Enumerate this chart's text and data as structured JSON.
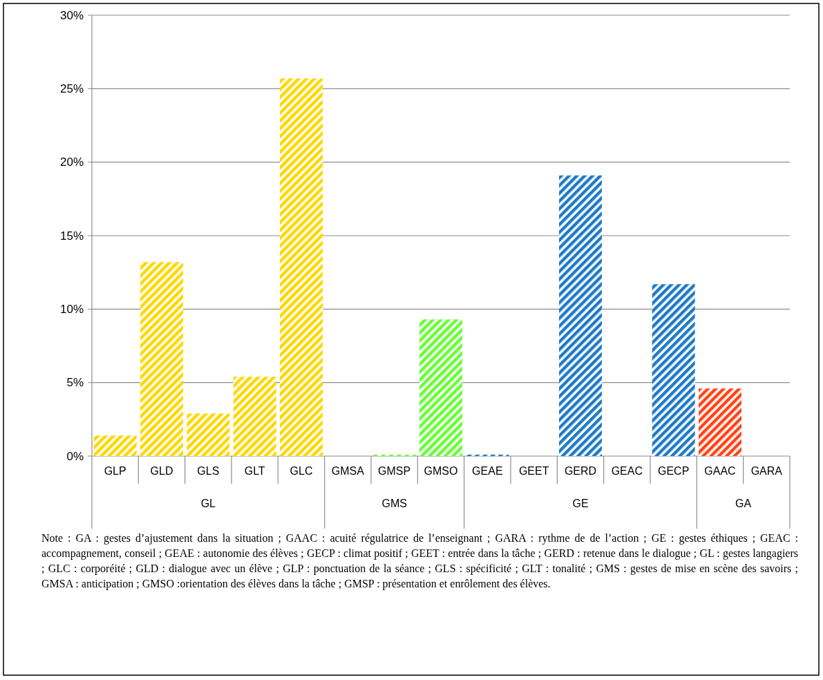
{
  "chart_data": {
    "type": "bar",
    "categories": [
      "GLP",
      "GLD",
      "GLS",
      "GLT",
      "GLC",
      "GMSA",
      "GMSP",
      "GMSO",
      "GEAE",
      "GEET",
      "GERD",
      "GEAC",
      "GECP",
      "GAAC",
      "GARA"
    ],
    "values": [
      1.4,
      13.2,
      2.9,
      5.4,
      25.7,
      0,
      0.1,
      9.3,
      0.1,
      0,
      19.1,
      0,
      11.7,
      4.6,
      0
    ],
    "colors": [
      "#ffd700",
      "#ffd700",
      "#ffd700",
      "#ffd700",
      "#ffd700",
      "#66ff33",
      "#66ff33",
      "#66ff33",
      "#1f7bc8",
      "#1f7bc8",
      "#1f7bc8",
      "#1f7bc8",
      "#1f7bc8",
      "#ff4418",
      "#ff4418"
    ],
    "ylim": [
      0,
      30
    ],
    "yticks": [
      {
        "value": 0,
        "label": "0%"
      },
      {
        "value": 5,
        "label": "5%"
      },
      {
        "value": 10,
        "label": "10%"
      },
      {
        "value": 15,
        "label": "15%"
      },
      {
        "value": 20,
        "label": "20%"
      },
      {
        "value": 25,
        "label": "25%"
      },
      {
        "value": 30,
        "label": "30%"
      }
    ],
    "grid": "y",
    "annotations": [
      "GL",
      "GMS",
      "GE",
      "GA",
      "Note : GA : gestes d’ajustement dans la situation ; GAAC : acuité régulatrice de l’enseignant ; GARA : rythme de de l’action ; GE : gestes éthiques ;  GEAC : accompagnement, conseil ; GEAE : autonomie des élèves ; GECP : climat positif ; GEET : entrée dans la tâche ; GERD : retenue dans le dialogue ; GL : gestes langagiers ; GLC : corporéité ;  GLD : dialogue avec un élève ; GLP : ponctuation de la séance ; GLS : spécificité ; GLT : tonalité ; GMS : gestes de mise en scène des savoirs ; GMSA : anticipation ; GMSO :orientation des élèves dans la tâche ; GMSP : présentation et enrôlement des élèves."
    ]
  }
}
